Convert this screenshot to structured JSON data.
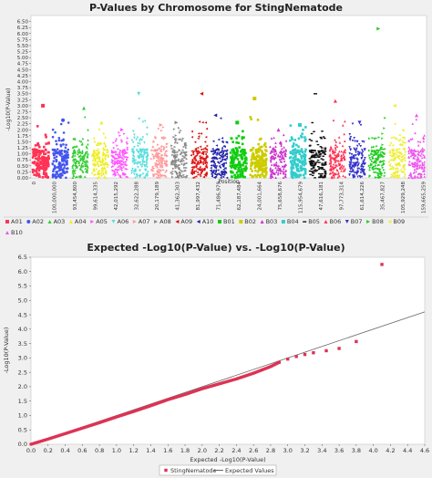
{
  "chart_data": [
    {
      "type": "scatter",
      "title": "P-Values by Chromosome for StingNematode",
      "xlabel": "Position",
      "ylabel": "-Log10(P-Value)",
      "ylim": [
        0,
        6.75
      ],
      "yticks": [
        "0.00",
        "0.25",
        "0.50",
        "0.75",
        "1.00",
        "1.25",
        "1.50",
        "1.75",
        "2.00",
        "2.25",
        "2.50",
        "2.75",
        "3.00",
        "3.25",
        "3.50",
        "3.75",
        "4.00",
        "4.25",
        "4.50",
        "4.75",
        "5.00",
        "5.25",
        "5.50",
        "5.75",
        "6.00",
        "6.25",
        "6.50"
      ],
      "xticks": [
        "0",
        "100,000,000",
        "93,454,800",
        "99,614,335",
        "42,015,292",
        "32,622,288",
        "20,179,189",
        "41,362,303",
        "81,997,432",
        "71,486,979",
        "62,187,484",
        "24,001,664",
        "75,658,676",
        "115,954,679",
        "47,616,181",
        "97,773,314",
        "61,614,226",
        "35,467,827",
        "105,929,248",
        "159,665,259"
      ],
      "grid": false,
      "legend_position": "bottom",
      "series": [
        {
          "name": "A01",
          "color": "#ff3355",
          "marker": "square",
          "peak": 3.0,
          "ctr": 0.6
        },
        {
          "name": "A02",
          "color": "#4455ee",
          "marker": "circle",
          "peak": 2.4,
          "ctr": 0.6
        },
        {
          "name": "A03",
          "color": "#33cc33",
          "marker": "triangle-up",
          "peak": 2.9,
          "ctr": 0.6
        },
        {
          "name": "A04",
          "color": "#eeee22",
          "marker": "triangle-up",
          "peak": 2.3,
          "ctr": 0.6
        },
        {
          "name": "A05",
          "color": "#ff55ff",
          "marker": "triangle-right",
          "peak": 2.0,
          "ctr": 0.6
        },
        {
          "name": "A06",
          "color": "#55dddd",
          "marker": "triangle-down",
          "peak": 3.5,
          "ctr": 0.6
        },
        {
          "name": "A07",
          "color": "#ff9999",
          "marker": "triangle-right",
          "peak": 2.2,
          "ctr": 0.6
        },
        {
          "name": "A08",
          "color": "#888888",
          "marker": "triangle-right",
          "peak": 2.3,
          "ctr": 0.6
        },
        {
          "name": "A09",
          "color": "#dd1111",
          "marker": "triangle-left",
          "peak": 3.5,
          "ctr": 0.6
        },
        {
          "name": "A10",
          "color": "#2222aa",
          "marker": "triangle-left",
          "peak": 2.6,
          "ctr": 0.6
        },
        {
          "name": "B01",
          "color": "#11cc11",
          "marker": "square",
          "peak": 2.3,
          "ctr": 0.6
        },
        {
          "name": "B02",
          "color": "#cccc00",
          "marker": "square",
          "peak": 3.3,
          "ctr": 0.6
        },
        {
          "name": "B03",
          "color": "#cc33cc",
          "marker": "triangle-up",
          "peak": 2.0,
          "ctr": 0.6
        },
        {
          "name": "B04",
          "color": "#33cccc",
          "marker": "square",
          "peak": 2.2,
          "ctr": 0.6
        },
        {
          "name": "B05",
          "color": "#111111",
          "marker": "line",
          "peak": 3.5,
          "ctr": 0.6
        },
        {
          "name": "B06",
          "color": "#ff3355",
          "marker": "triangle-up",
          "peak": 3.2,
          "ctr": 0.6
        },
        {
          "name": "B07",
          "color": "#3333cc",
          "marker": "triangle-down",
          "peak": 2.3,
          "ctr": 0.6
        },
        {
          "name": "B08",
          "color": "#22cc22",
          "marker": "triangle-right",
          "peak": 6.2,
          "ctr": 0.6
        },
        {
          "name": "B09",
          "color": "#eeee33",
          "marker": "triangle-left",
          "peak": 3.0,
          "ctr": 0.6
        },
        {
          "name": "B10",
          "color": "#ee55ee",
          "marker": "triangle-up",
          "peak": 2.6,
          "ctr": 0.6
        }
      ]
    },
    {
      "type": "scatter",
      "title": "Expected -Log10(P-Value) vs. -Log10(P-Value)",
      "xlabel": "Expected -Log10(P-Value)",
      "ylabel": "-Log10(P-Value)",
      "xlim": [
        0,
        4.6
      ],
      "ylim": [
        0,
        6.5
      ],
      "xticks": [
        "0.0",
        "0.2",
        "0.4",
        "0.6",
        "0.8",
        "1.0",
        "1.2",
        "1.4",
        "1.6",
        "1.8",
        "2.0",
        "2.2",
        "2.4",
        "2.6",
        "2.8",
        "3.0",
        "3.2",
        "3.4",
        "3.6",
        "3.8",
        "4.0",
        "4.2",
        "4.4",
        "4.6"
      ],
      "yticks": [
        "0.0",
        "0.5",
        "1.0",
        "1.5",
        "2.0",
        "2.5",
        "3.0",
        "3.5",
        "4.0",
        "4.5",
        "5.0",
        "5.5",
        "6.0",
        "6.5"
      ],
      "grid": false,
      "legend_position": "bottom",
      "series": [
        {
          "name": "StingNematode",
          "color": "#dd3355",
          "marker": "square",
          "x": [
            0.0,
            0.2,
            0.4,
            0.6,
            0.8,
            1.0,
            1.2,
            1.4,
            1.6,
            1.8,
            2.0,
            2.2,
            2.4,
            2.6,
            2.8,
            2.9,
            3.0,
            3.1,
            3.2,
            3.3,
            3.45,
            3.6,
            3.8,
            4.1
          ],
          "y": [
            0.0,
            0.18,
            0.37,
            0.56,
            0.75,
            0.95,
            1.14,
            1.34,
            1.55,
            1.73,
            1.93,
            2.1,
            2.27,
            2.47,
            2.7,
            2.85,
            2.96,
            3.05,
            3.12,
            3.18,
            3.25,
            3.33,
            3.57,
            6.25
          ]
        },
        {
          "name": "Expected Values",
          "color": "#666666",
          "marker": "line",
          "x": [
            0.0,
            4.6
          ],
          "y": [
            0.0,
            4.6
          ]
        }
      ]
    }
  ]
}
